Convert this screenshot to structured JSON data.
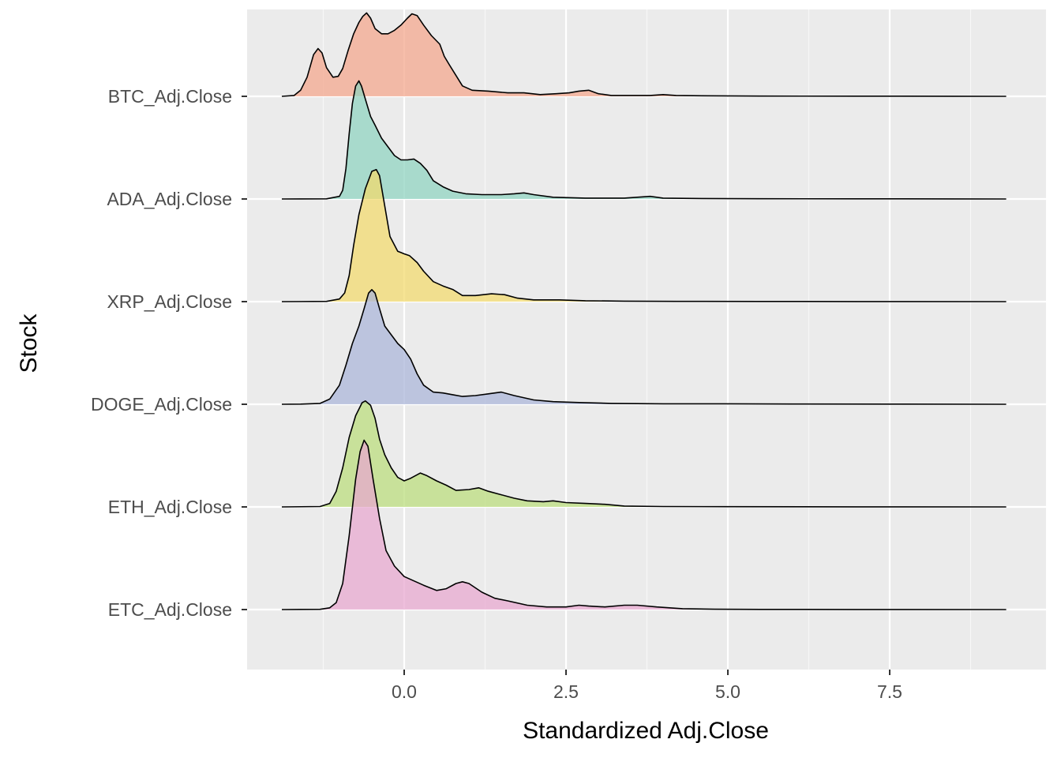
{
  "chart_data": {
    "type": "ridgeline",
    "xlabel": "Standardized Adj.Close",
    "ylabel": "Stock",
    "x_ticks": [
      0.0,
      2.5,
      5.0,
      7.5
    ],
    "x_tick_labels": [
      "0.0",
      "2.5",
      "5.0",
      "7.5"
    ],
    "xlim": [
      -1.9,
      9.75
    ],
    "grid": true,
    "legend": "none",
    "series": [
      {
        "name": "BTC_Adj.Close",
        "color": "#F4A58A",
        "range": [
          -1.89,
          9.3
        ],
        "points": [
          [
            -1.89,
            0
          ],
          [
            -1.7,
            0.01
          ],
          [
            -1.6,
            0.07
          ],
          [
            -1.5,
            0.22
          ],
          [
            -1.4,
            0.48
          ],
          [
            -1.33,
            0.55
          ],
          [
            -1.27,
            0.5
          ],
          [
            -1.2,
            0.33
          ],
          [
            -1.1,
            0.22
          ],
          [
            -1.02,
            0.23
          ],
          [
            -0.95,
            0.32
          ],
          [
            -0.87,
            0.52
          ],
          [
            -0.78,
            0.72
          ],
          [
            -0.7,
            0.85
          ],
          [
            -0.64,
            0.92
          ],
          [
            -0.58,
            0.96
          ],
          [
            -0.52,
            0.9
          ],
          [
            -0.45,
            0.78
          ],
          [
            -0.35,
            0.72
          ],
          [
            -0.25,
            0.72
          ],
          [
            -0.15,
            0.76
          ],
          [
            -0.05,
            0.82
          ],
          [
            0.05,
            0.9
          ],
          [
            0.12,
            0.95
          ],
          [
            0.2,
            0.93
          ],
          [
            0.3,
            0.82
          ],
          [
            0.42,
            0.7
          ],
          [
            0.55,
            0.6
          ],
          [
            0.62,
            0.46
          ],
          [
            0.7,
            0.36
          ],
          [
            0.8,
            0.24
          ],
          [
            0.9,
            0.12
          ],
          [
            1.05,
            0.07
          ],
          [
            1.3,
            0.06
          ],
          [
            1.6,
            0.04
          ],
          [
            1.85,
            0.04
          ],
          [
            2.1,
            0.02
          ],
          [
            2.35,
            0.03
          ],
          [
            2.55,
            0.04
          ],
          [
            2.7,
            0.06
          ],
          [
            2.85,
            0.07
          ],
          [
            3.0,
            0.03
          ],
          [
            3.2,
            0.01
          ],
          [
            3.5,
            0.01
          ],
          [
            3.8,
            0.01
          ],
          [
            4.0,
            0.02
          ],
          [
            4.2,
            0.01
          ],
          [
            4.6,
            0.006
          ],
          [
            5.5,
            0.003
          ],
          [
            7,
            0.002
          ],
          [
            8.5,
            0.001
          ],
          [
            9.3,
            0
          ]
        ]
      },
      {
        "name": "ADA_Adj.Close",
        "color": "#8ED2BF",
        "range": [
          -1.89,
          9.3
        ],
        "points": [
          [
            -1.89,
            0
          ],
          [
            -1.2,
            0.002
          ],
          [
            -1.0,
            0.03
          ],
          [
            -0.95,
            0.1
          ],
          [
            -0.9,
            0.35
          ],
          [
            -0.85,
            0.75
          ],
          [
            -0.8,
            1.1
          ],
          [
            -0.75,
            1.3
          ],
          [
            -0.7,
            1.36
          ],
          [
            -0.66,
            1.3
          ],
          [
            -0.6,
            1.15
          ],
          [
            -0.52,
            0.95
          ],
          [
            -0.45,
            0.85
          ],
          [
            -0.35,
            0.7
          ],
          [
            -0.25,
            0.6
          ],
          [
            -0.15,
            0.5
          ],
          [
            -0.05,
            0.45
          ],
          [
            0.05,
            0.45
          ],
          [
            0.15,
            0.46
          ],
          [
            0.25,
            0.41
          ],
          [
            0.35,
            0.33
          ],
          [
            0.45,
            0.21
          ],
          [
            0.6,
            0.14
          ],
          [
            0.75,
            0.09
          ],
          [
            0.95,
            0.06
          ],
          [
            1.2,
            0.05
          ],
          [
            1.5,
            0.05
          ],
          [
            1.7,
            0.06
          ],
          [
            1.85,
            0.07
          ],
          [
            2.0,
            0.05
          ],
          [
            2.3,
            0.02
          ],
          [
            2.8,
            0.01
          ],
          [
            3.4,
            0.01
          ],
          [
            3.8,
            0.03
          ],
          [
            4.0,
            0.01
          ],
          [
            4.6,
            0.005
          ],
          [
            5.5,
            0.003
          ],
          [
            7,
            0.002
          ],
          [
            8.5,
            0.001
          ],
          [
            9.3,
            0
          ]
        ]
      },
      {
        "name": "XRP_Adj.Close",
        "color": "#F2D96B",
        "range": [
          -1.89,
          9.3
        ],
        "points": [
          [
            -1.89,
            0
          ],
          [
            -1.2,
            0.003
          ],
          [
            -1.0,
            0.03
          ],
          [
            -0.92,
            0.1
          ],
          [
            -0.85,
            0.3
          ],
          [
            -0.78,
            0.65
          ],
          [
            -0.7,
            1.0
          ],
          [
            -0.6,
            1.3
          ],
          [
            -0.5,
            1.5
          ],
          [
            -0.43,
            1.52
          ],
          [
            -0.38,
            1.45
          ],
          [
            -0.3,
            1.1
          ],
          [
            -0.22,
            0.75
          ],
          [
            -0.1,
            0.58
          ],
          [
            0.0,
            0.55
          ],
          [
            0.08,
            0.53
          ],
          [
            0.2,
            0.45
          ],
          [
            0.3,
            0.35
          ],
          [
            0.45,
            0.23
          ],
          [
            0.6,
            0.18
          ],
          [
            0.75,
            0.14
          ],
          [
            0.9,
            0.07
          ],
          [
            1.1,
            0.07
          ],
          [
            1.35,
            0.09
          ],
          [
            1.55,
            0.08
          ],
          [
            1.75,
            0.04
          ],
          [
            2.0,
            0.02
          ],
          [
            2.4,
            0.02
          ],
          [
            2.8,
            0.01
          ],
          [
            3.4,
            0.005
          ],
          [
            4.2,
            0.003
          ],
          [
            5.5,
            0.002
          ],
          [
            7,
            0.001
          ],
          [
            9.3,
            0
          ]
        ]
      },
      {
        "name": "DOGE_Adj.Close",
        "color": "#A9B4D8",
        "range": [
          -1.89,
          9.3
        ],
        "points": [
          [
            -1.89,
            0
          ],
          [
            -1.6,
            0.002
          ],
          [
            -1.3,
            0.01
          ],
          [
            -1.15,
            0.06
          ],
          [
            -1.0,
            0.22
          ],
          [
            -0.9,
            0.45
          ],
          [
            -0.8,
            0.7
          ],
          [
            -0.7,
            0.9
          ],
          [
            -0.62,
            1.1
          ],
          [
            -0.55,
            1.28
          ],
          [
            -0.5,
            1.32
          ],
          [
            -0.45,
            1.28
          ],
          [
            -0.38,
            1.1
          ],
          [
            -0.3,
            0.9
          ],
          [
            -0.2,
            0.8
          ],
          [
            -0.1,
            0.7
          ],
          [
            0.0,
            0.63
          ],
          [
            0.1,
            0.52
          ],
          [
            0.2,
            0.35
          ],
          [
            0.3,
            0.22
          ],
          [
            0.45,
            0.14
          ],
          [
            0.6,
            0.13
          ],
          [
            0.75,
            0.11
          ],
          [
            0.9,
            0.09
          ],
          [
            1.1,
            0.1
          ],
          [
            1.3,
            0.12
          ],
          [
            1.5,
            0.14
          ],
          [
            1.7,
            0.1
          ],
          [
            2.0,
            0.05
          ],
          [
            2.3,
            0.03
          ],
          [
            2.7,
            0.02
          ],
          [
            3.2,
            0.01
          ],
          [
            4.0,
            0.005
          ],
          [
            5.0,
            0.005
          ],
          [
            6.0,
            0.003
          ],
          [
            7.5,
            0.002
          ],
          [
            9.3,
            0
          ]
        ]
      },
      {
        "name": "ETH_Adj.Close",
        "color": "#BADD7A",
        "range": [
          -1.89,
          9.3
        ],
        "points": [
          [
            -1.89,
            0
          ],
          [
            -1.3,
            0.005
          ],
          [
            -1.15,
            0.04
          ],
          [
            -1.05,
            0.18
          ],
          [
            -0.95,
            0.45
          ],
          [
            -0.85,
            0.8
          ],
          [
            -0.75,
            1.05
          ],
          [
            -0.65,
            1.2
          ],
          [
            -0.6,
            1.22
          ],
          [
            -0.52,
            1.17
          ],
          [
            -0.45,
            1.02
          ],
          [
            -0.38,
            0.78
          ],
          [
            -0.3,
            0.6
          ],
          [
            -0.2,
            0.45
          ],
          [
            -0.1,
            0.34
          ],
          [
            0.0,
            0.3
          ],
          [
            0.1,
            0.33
          ],
          [
            0.25,
            0.39
          ],
          [
            0.35,
            0.36
          ],
          [
            0.5,
            0.3
          ],
          [
            0.65,
            0.25
          ],
          [
            0.8,
            0.19
          ],
          [
            1.0,
            0.2
          ],
          [
            1.15,
            0.22
          ],
          [
            1.3,
            0.18
          ],
          [
            1.5,
            0.14
          ],
          [
            1.7,
            0.1
          ],
          [
            1.9,
            0.07
          ],
          [
            2.15,
            0.06
          ],
          [
            2.3,
            0.07
          ],
          [
            2.5,
            0.05
          ],
          [
            2.8,
            0.04
          ],
          [
            3.1,
            0.03
          ],
          [
            3.4,
            0.01
          ],
          [
            4.0,
            0.005
          ],
          [
            5.0,
            0.003
          ],
          [
            7,
            0.001
          ],
          [
            9.3,
            0
          ]
        ]
      },
      {
        "name": "ETC_Adj.Close",
        "color": "#E8A6CF",
        "range": [
          -1.89,
          9.3
        ],
        "points": [
          [
            -1.89,
            0
          ],
          [
            -1.3,
            0.003
          ],
          [
            -1.15,
            0.02
          ],
          [
            -1.05,
            0.08
          ],
          [
            -0.95,
            0.3
          ],
          [
            -0.85,
            0.85
          ],
          [
            -0.75,
            1.5
          ],
          [
            -0.68,
            1.82
          ],
          [
            -0.62,
            1.95
          ],
          [
            -0.56,
            1.88
          ],
          [
            -0.48,
            1.5
          ],
          [
            -0.38,
            1.05
          ],
          [
            -0.28,
            0.68
          ],
          [
            -0.15,
            0.5
          ],
          [
            0.0,
            0.38
          ],
          [
            0.15,
            0.33
          ],
          [
            0.3,
            0.28
          ],
          [
            0.5,
            0.22
          ],
          [
            0.65,
            0.24
          ],
          [
            0.8,
            0.3
          ],
          [
            0.9,
            0.32
          ],
          [
            1.0,
            0.3
          ],
          [
            1.2,
            0.2
          ],
          [
            1.4,
            0.13
          ],
          [
            1.6,
            0.1
          ],
          [
            1.9,
            0.05
          ],
          [
            2.2,
            0.03
          ],
          [
            2.5,
            0.03
          ],
          [
            2.7,
            0.05
          ],
          [
            2.85,
            0.04
          ],
          [
            3.1,
            0.03
          ],
          [
            3.4,
            0.05
          ],
          [
            3.6,
            0.05
          ],
          [
            3.9,
            0.03
          ],
          [
            4.3,
            0.01
          ],
          [
            4.8,
            0.004
          ],
          [
            5.5,
            0.002
          ],
          [
            7,
            0.001
          ],
          [
            9.3,
            0
          ]
        ]
      }
    ]
  }
}
